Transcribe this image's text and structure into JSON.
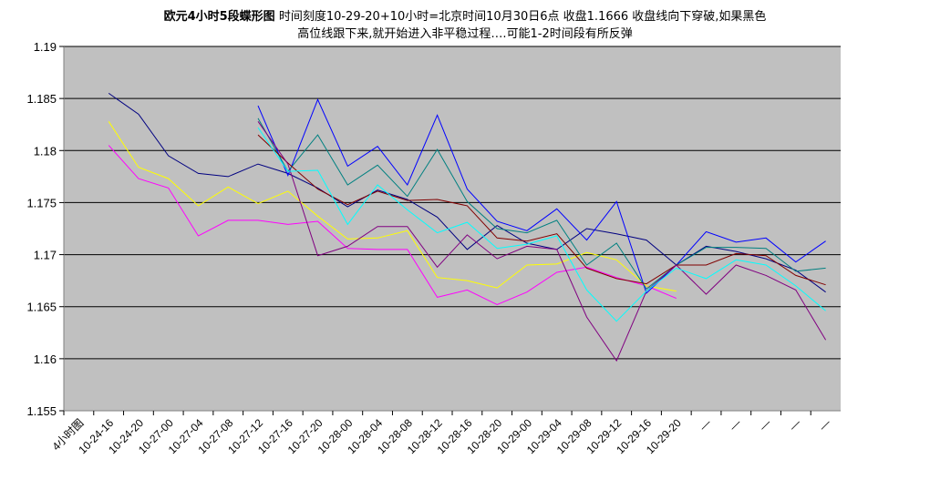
{
  "chart_data": {
    "type": "line",
    "title_bold": "欧元4小时5段蝶形图",
    "title_rest": " 时间刻度10-29-20+10小时=北京时间10月30日6点 收盘1.1666 收盘线向下穿破,如果黑色",
    "title_line2": "高位线跟下来,就开始进入非平稳过程….可能1-2时间段有所反弹",
    "ylim": [
      1.155,
      1.19
    ],
    "yticks": [
      "1.19",
      "1.185",
      "1.18",
      "1.175",
      "1.17",
      "1.165",
      "1.16",
      "1.155"
    ],
    "ytick_values": [
      1.19,
      1.185,
      1.18,
      1.175,
      1.17,
      1.165,
      1.16,
      1.155
    ],
    "grid": true,
    "plot_background": "#c0c0c0",
    "categories": [
      "4小时图",
      "10-24-16",
      "10-24-20",
      "10-27-00",
      "10-27-04",
      "10-27-08",
      "10-27-12",
      "10-27-16",
      "10-27-20",
      "10-28-00",
      "10-28-04",
      "10-28-08",
      "10-28-12",
      "10-28-16",
      "10-28-20",
      "10-29-00",
      "10-29-04",
      "10-29-08",
      "10-29-12",
      "10-29-16",
      "10-29-20",
      "—",
      "—",
      "—",
      "—",
      "—"
    ],
    "series": [
      {
        "color": "#000080",
        "values": [
          null,
          1.1855,
          1.1835,
          1.1795,
          1.1778,
          1.1775,
          1.1787,
          1.1778,
          1.1764,
          1.1746,
          1.1762,
          1.1753,
          1.1736,
          1.1705,
          1.1728,
          1.1711,
          1.1705,
          1.1725,
          1.172,
          1.1714,
          1.169,
          1.1708,
          1.1703,
          1.1696,
          1.1685,
          1.1664
        ]
      },
      {
        "color": "#ff00ff",
        "values": [
          null,
          1.1805,
          1.1773,
          1.1764,
          1.1718,
          1.1733,
          1.1733,
          1.1729,
          1.1732,
          1.1706,
          1.1705,
          1.1705,
          1.1659,
          1.1666,
          1.1652,
          1.1664,
          1.1683,
          1.1688,
          1.1678,
          1.167,
          1.1658,
          null,
          null,
          null,
          null,
          null
        ]
      },
      {
        "color": "#ffff00",
        "values": [
          null,
          1.1828,
          1.1784,
          1.1773,
          1.1747,
          1.1765,
          1.1749,
          1.1761,
          1.1737,
          1.1715,
          1.1716,
          1.1723,
          1.1678,
          1.1675,
          1.1668,
          1.169,
          1.1691,
          1.1702,
          1.1695,
          1.167,
          1.1665,
          null,
          null,
          null,
          null,
          null
        ]
      },
      {
        "color": "#0000ff",
        "values": [
          null,
          null,
          null,
          null,
          null,
          null,
          1.1843,
          1.1776,
          1.1849,
          1.1785,
          1.1804,
          1.1767,
          1.1834,
          1.1763,
          1.1732,
          1.1723,
          1.1744,
          1.1714,
          1.1751,
          1.1663,
          1.169,
          1.1722,
          1.1712,
          1.1716,
          1.1693,
          1.1713
        ]
      },
      {
        "color": "#008080",
        "values": [
          null,
          null,
          null,
          null,
          null,
          null,
          1.1831,
          1.178,
          1.1815,
          1.1767,
          1.1786,
          1.1756,
          1.1801,
          1.1751,
          1.1725,
          1.1721,
          1.1733,
          1.169,
          1.1711,
          1.1667,
          1.169,
          1.1707,
          1.1707,
          1.1706,
          1.1684,
          1.1687
        ]
      },
      {
        "color": "#800000",
        "values": [
          null,
          null,
          null,
          null,
          null,
          null,
          1.1815,
          1.1788,
          1.1763,
          1.1748,
          1.1761,
          1.1752,
          1.1753,
          1.1747,
          1.1716,
          1.1713,
          1.172,
          1.1687,
          1.1677,
          1.1672,
          1.169,
          1.169,
          1.1701,
          1.1699,
          1.168,
          1.1671
        ]
      },
      {
        "color": "#800080",
        "values": [
          null,
          null,
          null,
          null,
          null,
          null,
          1.1828,
          1.1787,
          1.1699,
          1.1708,
          1.1727,
          1.1727,
          1.1688,
          1.1719,
          1.1696,
          1.1708,
          1.1705,
          1.164,
          1.1598,
          1.1665,
          1.169,
          1.1662,
          1.169,
          1.168,
          1.1666,
          1.1618
        ]
      },
      {
        "color": "#00ffff",
        "values": [
          null,
          null,
          null,
          null,
          null,
          null,
          1.1822,
          1.178,
          1.1781,
          1.1729,
          1.1767,
          1.1743,
          1.1721,
          1.1731,
          1.1706,
          1.171,
          1.1718,
          1.1666,
          1.1636,
          1.1665,
          1.1687,
          1.1677,
          1.1695,
          1.169,
          1.167,
          1.1646
        ]
      }
    ]
  }
}
